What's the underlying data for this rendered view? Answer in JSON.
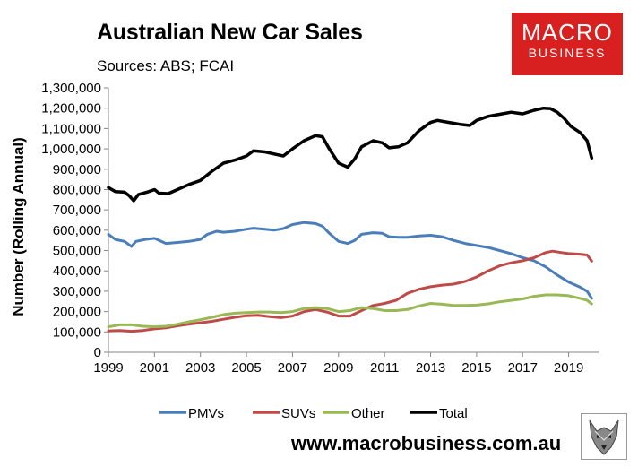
{
  "title": "Australian New Car Sales",
  "subtitle": "Sources: ABS; FCAI",
  "brand": {
    "line1": "MACRO",
    "line2": "BUSINESS",
    "color": "#d7201f"
  },
  "website": "www.macrobusiness.com.au",
  "logo_icon": "wolf-head-icon",
  "chart_data": {
    "type": "line",
    "title": "Australian New Car Sales",
    "subtitle": "Sources: ABS; FCAI",
    "xlabel": "",
    "ylabel": "Number (Rolling Annual)",
    "xlim": [
      1999,
      2020.3
    ],
    "ylim": [
      0,
      1300000
    ],
    "x_ticks": [
      "1999",
      "2001",
      "2003",
      "2005",
      "2007",
      "2009",
      "2011",
      "2013",
      "2015",
      "2017",
      "2019"
    ],
    "x_tick_values": [
      1999,
      2001,
      2003,
      2005,
      2007,
      2009,
      2011,
      2013,
      2015,
      2017,
      2019
    ],
    "y_ticks": [
      "0",
      "100,000",
      "200,000",
      "300,000",
      "400,000",
      "500,000",
      "600,000",
      "700,000",
      "800,000",
      "900,000",
      "1,000,000",
      "1,100,000",
      "1,200,000",
      "1,300,000"
    ],
    "y_tick_values": [
      0,
      100000,
      200000,
      300000,
      400000,
      500000,
      600000,
      700000,
      800000,
      900000,
      1000000,
      1100000,
      1200000,
      1300000
    ],
    "grid": false,
    "legend_position": "bottom",
    "series": [
      {
        "name": "PMVs",
        "color": "#4a7ebb",
        "points": [
          [
            1999.0,
            580000
          ],
          [
            1999.3,
            555000
          ],
          [
            1999.7,
            545000
          ],
          [
            2000.0,
            520000
          ],
          [
            2000.2,
            545000
          ],
          [
            2000.6,
            555000
          ],
          [
            2001.0,
            560000
          ],
          [
            2001.5,
            535000
          ],
          [
            2002.0,
            540000
          ],
          [
            2002.5,
            545000
          ],
          [
            2003.0,
            555000
          ],
          [
            2003.3,
            580000
          ],
          [
            2003.7,
            595000
          ],
          [
            2004.0,
            590000
          ],
          [
            2004.5,
            595000
          ],
          [
            2005.0,
            605000
          ],
          [
            2005.3,
            610000
          ],
          [
            2005.8,
            605000
          ],
          [
            2006.2,
            600000
          ],
          [
            2006.6,
            608000
          ],
          [
            2007.0,
            628000
          ],
          [
            2007.5,
            638000
          ],
          [
            2008.0,
            633000
          ],
          [
            2008.3,
            620000
          ],
          [
            2008.6,
            585000
          ],
          [
            2009.0,
            545000
          ],
          [
            2009.4,
            535000
          ],
          [
            2009.7,
            550000
          ],
          [
            2010.0,
            580000
          ],
          [
            2010.5,
            588000
          ],
          [
            2010.9,
            585000
          ],
          [
            2011.2,
            568000
          ],
          [
            2011.6,
            565000
          ],
          [
            2012.0,
            565000
          ],
          [
            2012.5,
            572000
          ],
          [
            2013.0,
            575000
          ],
          [
            2013.5,
            568000
          ],
          [
            2014.0,
            550000
          ],
          [
            2014.5,
            535000
          ],
          [
            2015.0,
            525000
          ],
          [
            2015.5,
            515000
          ],
          [
            2016.0,
            500000
          ],
          [
            2016.5,
            485000
          ],
          [
            2017.0,
            465000
          ],
          [
            2017.5,
            450000
          ],
          [
            2018.0,
            420000
          ],
          [
            2018.5,
            380000
          ],
          [
            2019.0,
            345000
          ],
          [
            2019.5,
            320000
          ],
          [
            2019.8,
            300000
          ],
          [
            2020.0,
            265000
          ]
        ]
      },
      {
        "name": "SUVs",
        "color": "#be4b48",
        "points": [
          [
            1999.0,
            105000
          ],
          [
            1999.5,
            107000
          ],
          [
            2000.0,
            103000
          ],
          [
            2000.5,
            107000
          ],
          [
            2001.0,
            115000
          ],
          [
            2001.5,
            120000
          ],
          [
            2002.0,
            130000
          ],
          [
            2002.5,
            138000
          ],
          [
            2003.0,
            145000
          ],
          [
            2003.5,
            152000
          ],
          [
            2004.0,
            162000
          ],
          [
            2004.5,
            172000
          ],
          [
            2005.0,
            180000
          ],
          [
            2005.5,
            182000
          ],
          [
            2006.0,
            175000
          ],
          [
            2006.5,
            170000
          ],
          [
            2007.0,
            178000
          ],
          [
            2007.5,
            200000
          ],
          [
            2008.0,
            210000
          ],
          [
            2008.5,
            198000
          ],
          [
            2009.0,
            178000
          ],
          [
            2009.5,
            178000
          ],
          [
            2010.0,
            205000
          ],
          [
            2010.5,
            230000
          ],
          [
            2011.0,
            240000
          ],
          [
            2011.5,
            255000
          ],
          [
            2012.0,
            290000
          ],
          [
            2012.5,
            310000
          ],
          [
            2013.0,
            322000
          ],
          [
            2013.5,
            330000
          ],
          [
            2014.0,
            335000
          ],
          [
            2014.5,
            348000
          ],
          [
            2015.0,
            370000
          ],
          [
            2015.5,
            400000
          ],
          [
            2016.0,
            425000
          ],
          [
            2016.5,
            440000
          ],
          [
            2017.0,
            450000
          ],
          [
            2017.5,
            465000
          ],
          [
            2018.0,
            490000
          ],
          [
            2018.3,
            497000
          ],
          [
            2018.7,
            490000
          ],
          [
            2019.0,
            485000
          ],
          [
            2019.5,
            482000
          ],
          [
            2019.8,
            478000
          ],
          [
            2020.0,
            448000
          ]
        ]
      },
      {
        "name": "Other",
        "color": "#98b954",
        "points": [
          [
            1999.0,
            125000
          ],
          [
            1999.5,
            135000
          ],
          [
            2000.0,
            135000
          ],
          [
            2000.5,
            128000
          ],
          [
            2001.0,
            125000
          ],
          [
            2001.5,
            128000
          ],
          [
            2002.0,
            138000
          ],
          [
            2002.5,
            150000
          ],
          [
            2003.0,
            160000
          ],
          [
            2003.5,
            172000
          ],
          [
            2004.0,
            185000
          ],
          [
            2004.5,
            192000
          ],
          [
            2005.0,
            195000
          ],
          [
            2005.5,
            198000
          ],
          [
            2006.0,
            198000
          ],
          [
            2006.5,
            195000
          ],
          [
            2007.0,
            200000
          ],
          [
            2007.5,
            215000
          ],
          [
            2008.0,
            220000
          ],
          [
            2008.5,
            215000
          ],
          [
            2009.0,
            200000
          ],
          [
            2009.5,
            205000
          ],
          [
            2010.0,
            220000
          ],
          [
            2010.5,
            215000
          ],
          [
            2011.0,
            205000
          ],
          [
            2011.5,
            205000
          ],
          [
            2012.0,
            210000
          ],
          [
            2012.5,
            228000
          ],
          [
            2013.0,
            240000
          ],
          [
            2013.5,
            236000
          ],
          [
            2014.0,
            230000
          ],
          [
            2014.5,
            230000
          ],
          [
            2015.0,
            232000
          ],
          [
            2015.5,
            238000
          ],
          [
            2016.0,
            248000
          ],
          [
            2016.5,
            255000
          ],
          [
            2017.0,
            262000
          ],
          [
            2017.5,
            275000
          ],
          [
            2018.0,
            282000
          ],
          [
            2018.5,
            282000
          ],
          [
            2019.0,
            278000
          ],
          [
            2019.5,
            265000
          ],
          [
            2019.8,
            255000
          ],
          [
            2020.0,
            238000
          ]
        ]
      },
      {
        "name": "Total",
        "color": "#000000",
        "points": [
          [
            1999.0,
            810000
          ],
          [
            1999.3,
            790000
          ],
          [
            1999.7,
            787000
          ],
          [
            1999.9,
            770000
          ],
          [
            2000.1,
            745000
          ],
          [
            2000.3,
            775000
          ],
          [
            2000.7,
            788000
          ],
          [
            2001.0,
            800000
          ],
          [
            2001.2,
            782000
          ],
          [
            2001.6,
            780000
          ],
          [
            2002.0,
            800000
          ],
          [
            2002.5,
            825000
          ],
          [
            2003.0,
            845000
          ],
          [
            2003.5,
            890000
          ],
          [
            2004.0,
            930000
          ],
          [
            2004.5,
            945000
          ],
          [
            2005.0,
            965000
          ],
          [
            2005.3,
            990000
          ],
          [
            2005.8,
            985000
          ],
          [
            2006.2,
            975000
          ],
          [
            2006.6,
            965000
          ],
          [
            2007.0,
            1000000
          ],
          [
            2007.5,
            1040000
          ],
          [
            2008.0,
            1065000
          ],
          [
            2008.3,
            1060000
          ],
          [
            2008.6,
            1000000
          ],
          [
            2009.0,
            930000
          ],
          [
            2009.4,
            910000
          ],
          [
            2009.7,
            950000
          ],
          [
            2010.0,
            1010000
          ],
          [
            2010.5,
            1040000
          ],
          [
            2010.9,
            1030000
          ],
          [
            2011.2,
            1005000
          ],
          [
            2011.6,
            1010000
          ],
          [
            2012.0,
            1030000
          ],
          [
            2012.5,
            1090000
          ],
          [
            2013.0,
            1130000
          ],
          [
            2013.3,
            1140000
          ],
          [
            2013.8,
            1130000
          ],
          [
            2014.3,
            1120000
          ],
          [
            2014.7,
            1115000
          ],
          [
            2015.0,
            1140000
          ],
          [
            2015.5,
            1160000
          ],
          [
            2016.0,
            1170000
          ],
          [
            2016.5,
            1180000
          ],
          [
            2017.0,
            1172000
          ],
          [
            2017.5,
            1190000
          ],
          [
            2017.9,
            1200000
          ],
          [
            2018.2,
            1198000
          ],
          [
            2018.5,
            1180000
          ],
          [
            2018.8,
            1150000
          ],
          [
            2019.1,
            1110000
          ],
          [
            2019.5,
            1080000
          ],
          [
            2019.8,
            1040000
          ],
          [
            2020.0,
            955000
          ]
        ]
      }
    ]
  }
}
